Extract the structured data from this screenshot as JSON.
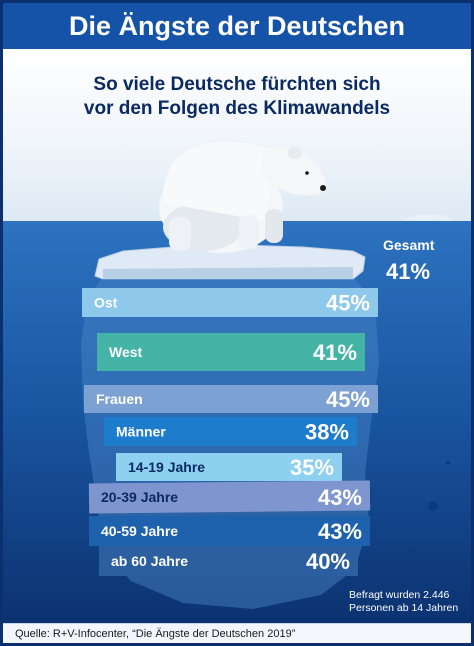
{
  "header": {
    "title": "Die Ängste der Deutschen"
  },
  "subtitle": {
    "line1": "So viele Deutsche fürchten sich",
    "line2": "vor den Folgen des Klimawandels"
  },
  "gesamt": {
    "label": "Gesamt",
    "value": "41%"
  },
  "note": {
    "line1": "Befragt wurden 2.446",
    "line2": "Personen ab 14 Jahren"
  },
  "footer": {
    "source": "Quelle: R+V-Infocenter, “Die Ängste der Deutschen 2019”"
  },
  "colors": {
    "header": "#1553a8",
    "sea": "#1a57a3",
    "text_dark": "#0b2a62"
  },
  "chart_data": {
    "type": "bar",
    "unit": "%",
    "total": {
      "label": "Gesamt",
      "value": 41
    },
    "categories": [
      "Ost",
      "West",
      "Frauen",
      "Männer",
      "14-19 Jahre",
      "20-39 Jahre",
      "40-59 Jahre",
      "ab 60 Jahre"
    ],
    "values": [
      45,
      41,
      45,
      38,
      35,
      43,
      43,
      40
    ],
    "labels": [
      "45%",
      "41%",
      "45%",
      "38%",
      "35%",
      "43%",
      "43%",
      "40%"
    ]
  }
}
